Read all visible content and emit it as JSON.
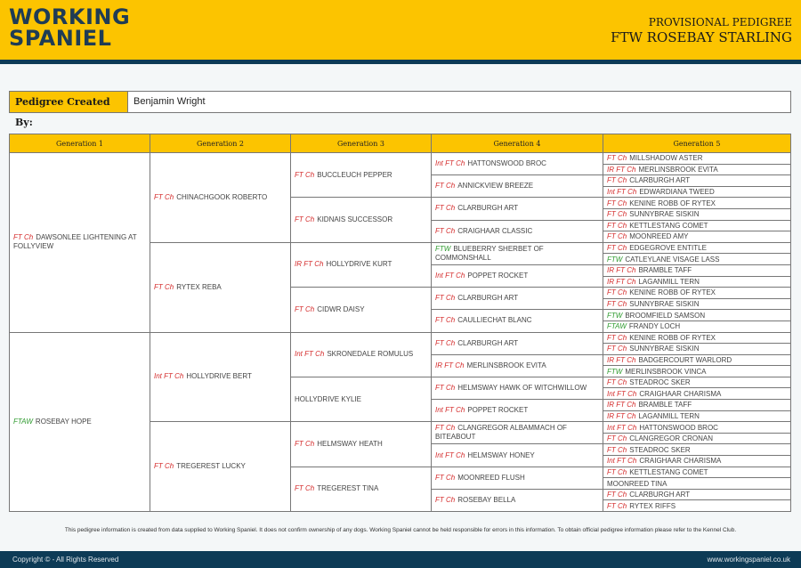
{
  "header": {
    "logo_line1": "WORKING",
    "logo_line2": "SPANIEL",
    "subtitle": "PROVISIONAL PEDIGREE",
    "title": "FTW ROSEBAY STARLING"
  },
  "creator": {
    "label": "Pedigree Created By:",
    "value": "Benjamin Wright"
  },
  "colors": {
    "brand_yellow": "#fcc400",
    "brand_navy": "#0d3b56",
    "title_red": "#d42a2a",
    "title_green": "#2e9a2e"
  },
  "table": {
    "headers": [
      "Generation 1",
      "Generation 2",
      "Generation 3",
      "Generation 4",
      "Generation 5"
    ],
    "gen1": [
      {
        "title": "FT Ch",
        "name": "DAWSONLEE LIGHTENING AT FOLLYVIEW"
      },
      {
        "title": "FTAW",
        "name": "ROSEBAY HOPE"
      }
    ],
    "gen2": [
      {
        "title": "FT Ch",
        "name": "CHINACHGOOK ROBERTO"
      },
      {
        "title": "FT Ch",
        "name": "RYTEX REBA"
      },
      {
        "title": "Int FT Ch",
        "name": "HOLLYDRIVE BERT"
      },
      {
        "title": "FT Ch",
        "name": "TREGEREST LUCKY"
      }
    ],
    "gen3": [
      {
        "title": "FT Ch",
        "name": "BUCCLEUCH PEPPER"
      },
      {
        "title": "FT Ch",
        "name": "KIDNAIS SUCCESSOR"
      },
      {
        "title": "IR FT Ch",
        "name": "HOLLYDRIVE KURT"
      },
      {
        "title": "FT Ch",
        "name": "CIDWR DAISY"
      },
      {
        "title": "Int FT Ch",
        "name": "SKRONEDALE ROMULUS"
      },
      {
        "title": "",
        "name": "HOLLYDRIVE KYLIE"
      },
      {
        "title": "FT Ch",
        "name": "HELMSWAY HEATH"
      },
      {
        "title": "FT Ch",
        "name": "TREGEREST TINA"
      }
    ],
    "gen4": [
      {
        "title": "Int FT Ch",
        "name": "HATTONSWOOD BROC"
      },
      {
        "title": "FT Ch",
        "name": "ANNICKVIEW BREEZE"
      },
      {
        "title": "FT Ch",
        "name": "CLARBURGH ART"
      },
      {
        "title": "FT Ch",
        "name": "CRAIGHAAR CLASSIC"
      },
      {
        "title": "FTW",
        "name": "BLUEBERRY SHERBET OF COMMONSHALL"
      },
      {
        "title": "Int FT Ch",
        "name": "POPPET ROCKET"
      },
      {
        "title": "FT Ch",
        "name": "CLARBURGH ART"
      },
      {
        "title": "FT Ch",
        "name": "CAULLIECHAT BLANC"
      },
      {
        "title": "FT Ch",
        "name": "CLARBURGH ART"
      },
      {
        "title": "IR FT Ch",
        "name": "MERLINSBROOK EVITA"
      },
      {
        "title": "FT Ch",
        "name": "HELMSWAY HAWK OF WITCHWILLOW"
      },
      {
        "title": "Int FT Ch",
        "name": "POPPET ROCKET"
      },
      {
        "title": "FT Ch",
        "name": "CLANGREGOR ALBAMMACH OF BITEABOUT"
      },
      {
        "title": "Int FT Ch",
        "name": "HELMSWAY HONEY"
      },
      {
        "title": "FT Ch",
        "name": "MOONREED FLUSH"
      },
      {
        "title": "FT Ch",
        "name": "ROSEBAY BELLA"
      }
    ],
    "gen5": [
      {
        "title": "FT Ch",
        "name": "MILLSHADOW ASTER"
      },
      {
        "title": "IR FT Ch",
        "name": "MERLINSBROOK EVITA"
      },
      {
        "title": "FT Ch",
        "name": "CLARBURGH ART"
      },
      {
        "title": "Int FT Ch",
        "name": "EDWARDIANA TWEED"
      },
      {
        "title": "FT Ch",
        "name": "KENINE ROBB OF RYTEX"
      },
      {
        "title": "FT Ch",
        "name": "SUNNYBRAE SISKIN"
      },
      {
        "title": "FT Ch",
        "name": "KETTLESTANG COMET"
      },
      {
        "title": "FT Ch",
        "name": "MOONREED AMY"
      },
      {
        "title": "FT Ch",
        "name": "EDGEGROVE ENTITLE"
      },
      {
        "title": "FTW",
        "name": "CATLEYLANE VISAGE LASS"
      },
      {
        "title": "IR FT Ch",
        "name": "BRAMBLE TAFF"
      },
      {
        "title": "IR FT Ch",
        "name": "LAGANMILL TERN"
      },
      {
        "title": "FT Ch",
        "name": "KENINE ROBB OF RYTEX"
      },
      {
        "title": "FT Ch",
        "name": "SUNNYBRAE SISKIN"
      },
      {
        "title": "FTW",
        "name": "BROOMFIELD SAMSON"
      },
      {
        "title": "FTAW",
        "name": "FRANDY LOCH"
      },
      {
        "title": "FT Ch",
        "name": "KENINE ROBB OF RYTEX"
      },
      {
        "title": "FT Ch",
        "name": "SUNNYBRAE SISKIN"
      },
      {
        "title": "IR FT Ch",
        "name": "BADGERCOURT WARLORD"
      },
      {
        "title": "FTW",
        "name": "MERLINSBROOK VINCA"
      },
      {
        "title": "FT Ch",
        "name": "STEADROC SKER"
      },
      {
        "title": "Int FT Ch",
        "name": "CRAIGHAAR CHARISMA"
      },
      {
        "title": "IR FT Ch",
        "name": "BRAMBLE TAFF"
      },
      {
        "title": "IR FT Ch",
        "name": "LAGANMILL TERN"
      },
      {
        "title": "Int FT Ch",
        "name": "HATTONSWOOD BROC"
      },
      {
        "title": "FT Ch",
        "name": "CLANGREGOR CRONAN"
      },
      {
        "title": "FT Ch",
        "name": "STEADROC SKER"
      },
      {
        "title": "Int FT Ch",
        "name": "CRAIGHAAR CHARISMA"
      },
      {
        "title": "FT Ch",
        "name": "KETTLESTANG COMET"
      },
      {
        "title": "",
        "name": "MOONREED TINA"
      },
      {
        "title": "FT Ch",
        "name": "CLARBURGH ART"
      },
      {
        "title": "FT Ch",
        "name": "RYTEX RIFFS"
      }
    ]
  },
  "footnote": "This pedigree information is created from data supplied to Working Spaniel. It does not confirm ownership of any dogs. Working Spaniel cannot be held responsible for errors in this information. To obtain official pedigree information please refer to the Kennel Club.",
  "footer": {
    "copyright": "Copyright © - All Rights Reserved",
    "website": "www.workingspaniel.co.uk"
  }
}
